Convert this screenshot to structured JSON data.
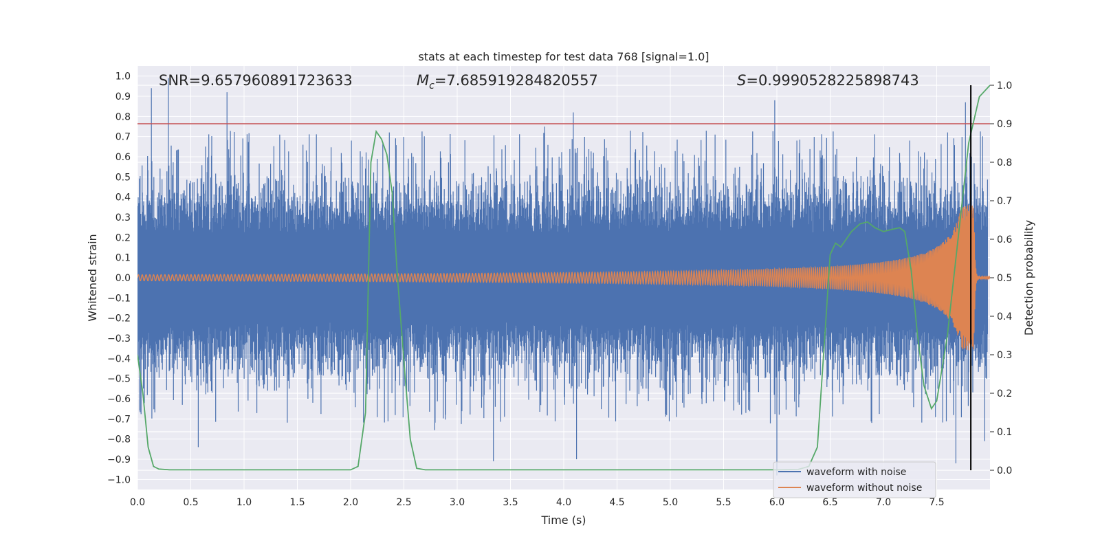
{
  "chart_data": {
    "type": "line",
    "title": "stats at each timestep for test data 768 [signal=1.0]",
    "xlabel": "Time (s)",
    "ylabel": "Whitened strain",
    "y2label": "Detection probability",
    "xlim": [
      0.0,
      8.0
    ],
    "ylim": [
      -1.05,
      1.05
    ],
    "y2lim": [
      -0.05,
      1.05
    ],
    "xticks": [
      0.0,
      0.5,
      1.0,
      1.5,
      2.0,
      2.5,
      3.0,
      3.5,
      4.0,
      4.5,
      5.0,
      5.5,
      6.0,
      6.5,
      7.0,
      7.5
    ],
    "xtick_labels": [
      "0.0",
      "0.5",
      "1.0",
      "1.5",
      "2.0",
      "2.5",
      "3.0",
      "3.5",
      "4.0",
      "4.5",
      "5.0",
      "5.5",
      "6.0",
      "6.5",
      "7.0",
      "7.5"
    ],
    "yticks": [
      1.0,
      0.9,
      0.8,
      0.7,
      0.6,
      0.5,
      0.4,
      0.3,
      0.2,
      0.1,
      0.0,
      -0.1,
      -0.2,
      -0.3,
      -0.4,
      -0.5,
      -0.6,
      -0.7,
      -0.8,
      -0.9,
      -1.0
    ],
    "ytick_labels": [
      "1.0",
      "0.9",
      "0.8",
      "0.7",
      "0.6",
      "0.5",
      "0.4",
      "0.3",
      "0.2",
      "0.1",
      "0.0",
      "−0.1",
      "−0.2",
      "−0.3",
      "−0.4",
      "−0.5",
      "−0.6",
      "−0.7",
      "−0.8",
      "−0.9",
      "−1.0"
    ],
    "y2ticks": [
      1.0,
      0.9,
      0.8,
      0.7,
      0.6,
      0.5,
      0.4,
      0.3,
      0.2,
      0.1,
      0.0
    ],
    "y2tick_labels": [
      "1.0",
      "0.9",
      "0.8",
      "0.7",
      "0.6",
      "0.5",
      "0.4",
      "0.3",
      "0.2",
      "0.1",
      "0.0"
    ],
    "stats": {
      "snr": "SNR=9.657960891723633",
      "mc_symbol": "M",
      "mc_subscript": "c",
      "mc_value": "=7.685919284820557",
      "s_symbol": "S",
      "s_value": "=0.9990528225898743"
    },
    "threshold_line": {
      "value": 0.9,
      "axis": "y2",
      "color": "#c44e52"
    },
    "marker_line": {
      "x": 7.82,
      "ymin": 0.0,
      "ymax": 1.0,
      "axis": "y2",
      "color": "#000000"
    },
    "series": [
      {
        "name": "waveform with noise",
        "color": "#4c72b0",
        "axis": "y",
        "description_envelope": {
          "typical_abs": 0.45,
          "peak_abs": 1.0,
          "seed": 768
        },
        "peaks": [
          {
            "x": 0.13,
            "y": 0.94
          },
          {
            "x": 0.29,
            "y": 0.99
          },
          {
            "x": 0.84,
            "y": 0.92
          },
          {
            "x": 4.09,
            "y": 0.82
          },
          {
            "x": 5.98,
            "y": 0.88
          },
          {
            "x": 7.77,
            "y": 0.87
          },
          {
            "x": 0.57,
            "y": -0.84
          },
          {
            "x": 3.34,
            "y": -0.91
          },
          {
            "x": 4.12,
            "y": -0.9
          },
          {
            "x": 6.0,
            "y": -0.98
          },
          {
            "x": 7.68,
            "y": -0.92
          },
          {
            "x": 7.95,
            "y": -0.81
          }
        ]
      },
      {
        "name": "waveform without noise",
        "color": "#dd8452",
        "axis": "y",
        "chirp": {
          "t_merge": 7.85,
          "amp_start": 0.015,
          "amp_peak": 0.36,
          "f_start": 28.0,
          "f_end": 140.0
        }
      },
      {
        "name": "detection probability",
        "color": "#55a868",
        "axis": "y2",
        "x": [
          0.0,
          0.05,
          0.1,
          0.15,
          0.2,
          0.3,
          0.5,
          1.0,
          1.5,
          2.0,
          2.07,
          2.14,
          2.19,
          2.24,
          2.29,
          2.34,
          2.39,
          2.44,
          2.51,
          2.56,
          2.62,
          2.7,
          3.0,
          4.0,
          5.0,
          6.0,
          6.2,
          6.3,
          6.38,
          6.45,
          6.5,
          6.55,
          6.6,
          6.65,
          6.7,
          6.78,
          6.85,
          6.92,
          7.0,
          7.07,
          7.15,
          7.2,
          7.26,
          7.32,
          7.38,
          7.45,
          7.5,
          7.6,
          7.7,
          7.8,
          7.9,
          8.0
        ],
        "y": [
          0.3,
          0.2,
          0.06,
          0.01,
          0.003,
          0.001,
          0.001,
          0.001,
          0.001,
          0.001,
          0.01,
          0.15,
          0.8,
          0.88,
          0.86,
          0.82,
          0.72,
          0.5,
          0.25,
          0.08,
          0.005,
          0.001,
          0.001,
          0.001,
          0.001,
          0.001,
          0.002,
          0.01,
          0.06,
          0.35,
          0.56,
          0.59,
          0.58,
          0.6,
          0.62,
          0.64,
          0.645,
          0.63,
          0.62,
          0.625,
          0.63,
          0.62,
          0.52,
          0.35,
          0.22,
          0.16,
          0.18,
          0.35,
          0.6,
          0.85,
          0.97,
          1.0
        ]
      }
    ],
    "legend": {
      "location": "lower-right",
      "entries": [
        "waveform with noise",
        "waveform without noise"
      ]
    }
  }
}
